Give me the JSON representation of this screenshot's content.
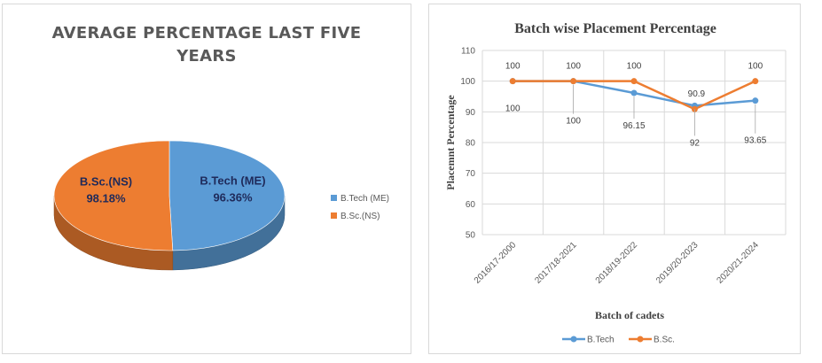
{
  "chart_data": [
    {
      "type": "pie",
      "title": "AVERAGE PERCENTAGE LAST FIVE YEARS",
      "slices": [
        {
          "name": "B.Tech (ME)",
          "value": 96.36,
          "label": "96.36%",
          "color": "#5b9bd5"
        },
        {
          "name": "B.Sc.(NS)",
          "value": 98.18,
          "label": "98.18%",
          "color": "#ed7d31"
        }
      ],
      "legend_position": "right"
    },
    {
      "type": "line",
      "title": "Batch wise Placement Percentage",
      "xlabel": "Batch of cadets",
      "ylabel": "Placemnt Percentage",
      "ylim": [
        50,
        110
      ],
      "yticks": [
        50,
        60,
        70,
        80,
        90,
        100,
        110
      ],
      "categories": [
        "2016/17-2000",
        "2017/18-2021",
        "2018/19-2022",
        "2019/20-2023",
        "2020/21-2024"
      ],
      "grid": true,
      "legend_position": "bottom",
      "series": [
        {
          "name": "B.Tech",
          "color": "#5b9bd5",
          "values": [
            100,
            100,
            96.15,
            92,
            93.65
          ],
          "labels": [
            "100",
            "100",
            "96.15",
            "92",
            "93.65"
          ]
        },
        {
          "name": "B.Sc.",
          "color": "#ed7d31",
          "values": [
            100,
            100,
            100,
            90.9,
            100
          ],
          "labels": [
            "100",
            "100",
            "100",
            "90.9",
            "100"
          ]
        }
      ]
    }
  ]
}
